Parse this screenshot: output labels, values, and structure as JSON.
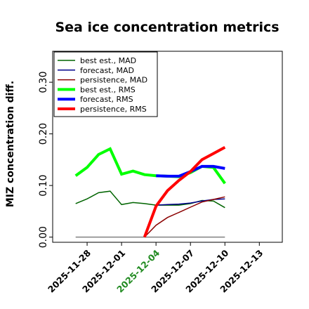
{
  "chart_data": {
    "type": "line",
    "title": "Sea ice concentration metrics",
    "ylabel": "MIZ concentration diff.",
    "xlabel": "",
    "ylim": [
      -0.01,
      0.36
    ],
    "yticks": [
      0.0,
      0.1,
      0.2,
      0.3
    ],
    "ytick_labels": [
      "0.00",
      "0.10",
      "0.20",
      "0.30"
    ],
    "xlim": [
      "2025-11-25",
      "2025-12-15"
    ],
    "xticks": [
      "2025-11-28",
      "2025-12-01",
      "2025-12-04",
      "2025-12-07",
      "2025-12-10",
      "2025-12-13"
    ],
    "xtick_labels": [
      "2025-11-28",
      "2025-12-01",
      "2025-12-04",
      "2025-12-07",
      "2025-12-10",
      "2025-12-13"
    ],
    "highlight_tick_index": 2,
    "highlight_color": "#228b22",
    "legend_position": "upper-left",
    "grid": false,
    "series": [
      {
        "name": "best est., MAD",
        "color": "#006400",
        "width": 1.5,
        "x": [
          "2025-11-27",
          "2025-11-28",
          "2025-11-29",
          "2025-11-30",
          "2025-12-01",
          "2025-12-02",
          "2025-12-03",
          "2025-12-04",
          "2025-12-05",
          "2025-12-06",
          "2025-12-07",
          "2025-12-08",
          "2025-12-09",
          "2025-12-10"
        ],
        "y": [
          0.065,
          0.074,
          0.086,
          0.089,
          0.063,
          0.067,
          0.065,
          0.062,
          0.062,
          0.062,
          0.065,
          0.071,
          0.07,
          0.057
        ]
      },
      {
        "name": "forecast,  MAD",
        "color": "#00008b",
        "width": 1.5,
        "x": [
          "2025-12-04",
          "2025-12-05",
          "2025-12-06",
          "2025-12-07",
          "2025-12-08",
          "2025-12-09",
          "2025-12-10"
        ],
        "y": [
          0.062,
          0.063,
          0.064,
          0.066,
          0.07,
          0.073,
          0.074
        ]
      },
      {
        "name": "persistence, MAD",
        "color": "#8b0000",
        "width": 1.5,
        "x": [
          "2025-12-03",
          "2025-12-04",
          "2025-12-05",
          "2025-12-06",
          "2025-12-07",
          "2025-12-08",
          "2025-12-09",
          "2025-12-10"
        ],
        "y": [
          0.0,
          0.023,
          0.038,
          0.048,
          0.058,
          0.068,
          0.073,
          0.078
        ]
      },
      {
        "name": "best est., RMS",
        "color": "#00ff00",
        "width": 4,
        "x": [
          "2025-11-27",
          "2025-11-28",
          "2025-11-29",
          "2025-11-30",
          "2025-12-01",
          "2025-12-02",
          "2025-12-03",
          "2025-12-04",
          "2025-12-05",
          "2025-12-06",
          "2025-12-07",
          "2025-12-08",
          "2025-12-09",
          "2025-12-10"
        ],
        "y": [
          0.119,
          0.135,
          0.16,
          0.171,
          0.122,
          0.128,
          0.121,
          0.119,
          0.118,
          0.117,
          0.125,
          0.137,
          0.135,
          0.104
        ]
      },
      {
        "name": "forecast,  RMS",
        "color": "#0000ff",
        "width": 4,
        "x": [
          "2025-12-04",
          "2025-12-05",
          "2025-12-06",
          "2025-12-07",
          "2025-12-08",
          "2025-12-09",
          "2025-12-10"
        ],
        "y": [
          0.119,
          0.118,
          0.118,
          0.127,
          0.137,
          0.137,
          0.133
        ]
      },
      {
        "name": "persistence, RMS",
        "color": "#ff0000",
        "width": 4,
        "x": [
          "2025-12-03",
          "2025-12-04",
          "2025-12-05",
          "2025-12-06",
          "2025-12-07",
          "2025-12-08",
          "2025-12-09",
          "2025-12-10"
        ],
        "y": [
          0.0,
          0.06,
          0.09,
          0.11,
          0.127,
          0.15,
          0.162,
          0.174
        ]
      },
      {
        "name": "",
        "color": "#808080",
        "width": 1.5,
        "x": [
          "2025-11-27",
          "2025-12-10"
        ],
        "y": [
          0.0,
          0.0
        ]
      }
    ]
  }
}
